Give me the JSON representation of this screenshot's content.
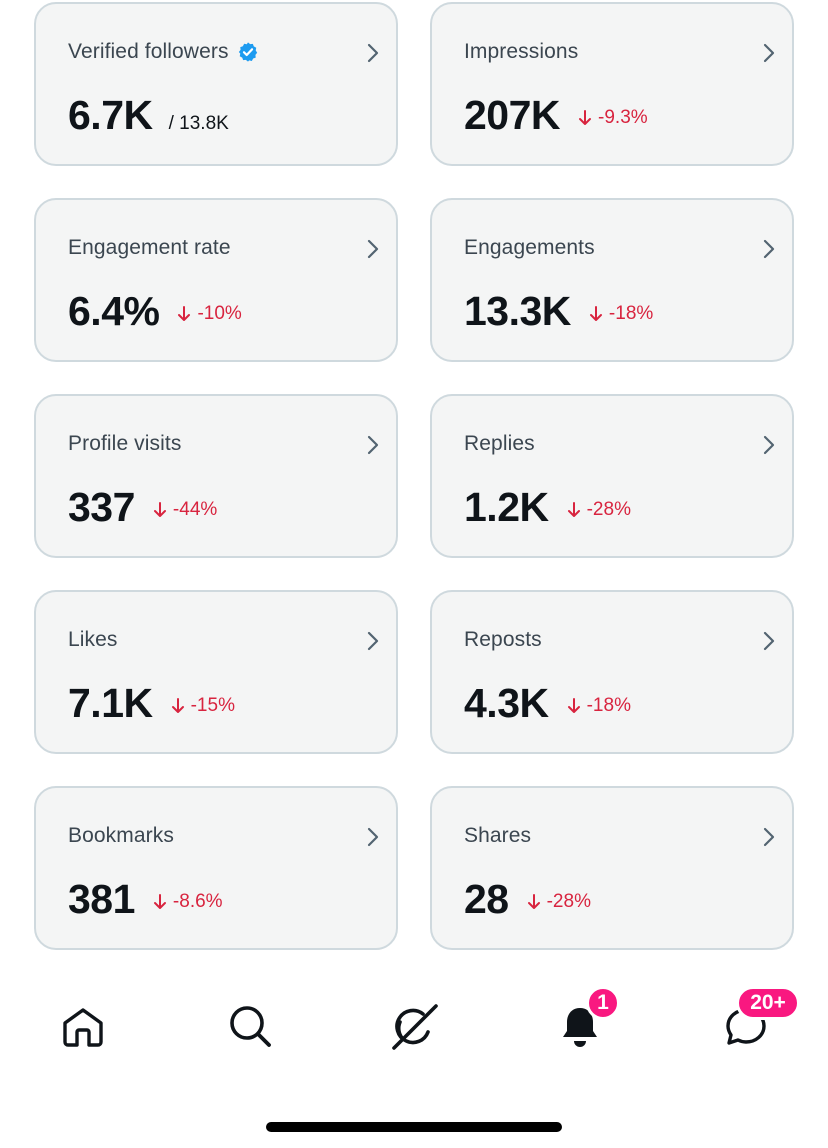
{
  "cards": [
    {
      "label": "Verified followers",
      "value": "6.7K",
      "secondary": "/ 13.8K",
      "verified": true
    },
    {
      "label": "Impressions",
      "value": "207K",
      "change": "-9.3%"
    },
    {
      "label": "Engagement rate",
      "value": "6.4%",
      "change": "-10%"
    },
    {
      "label": "Engagements",
      "value": "13.3K",
      "change": "-18%"
    },
    {
      "label": "Profile visits",
      "value": "337",
      "change": "-44%"
    },
    {
      "label": "Replies",
      "value": "1.2K",
      "change": "-28%"
    },
    {
      "label": "Likes",
      "value": "7.1K",
      "change": "-15%"
    },
    {
      "label": "Reposts",
      "value": "4.3K",
      "change": "-18%"
    },
    {
      "label": "Bookmarks",
      "value": "381",
      "change": "-8.6%"
    },
    {
      "label": "Shares",
      "value": "28",
      "change": "-28%"
    }
  ],
  "tabbar": {
    "items": [
      {
        "icon": "home-icon"
      },
      {
        "icon": "search-icon"
      },
      {
        "icon": "grok-icon"
      },
      {
        "icon": "notifications-bell-icon",
        "badge": "1"
      },
      {
        "icon": "messages-icon",
        "badge": "20+"
      }
    ]
  },
  "colors": {
    "card_background": "#f4f5f5",
    "card_border": "#cfd9de",
    "negative_change": "#d8243f",
    "verified_blue": "#1d9bf0",
    "badge_pink": "#f91880"
  }
}
